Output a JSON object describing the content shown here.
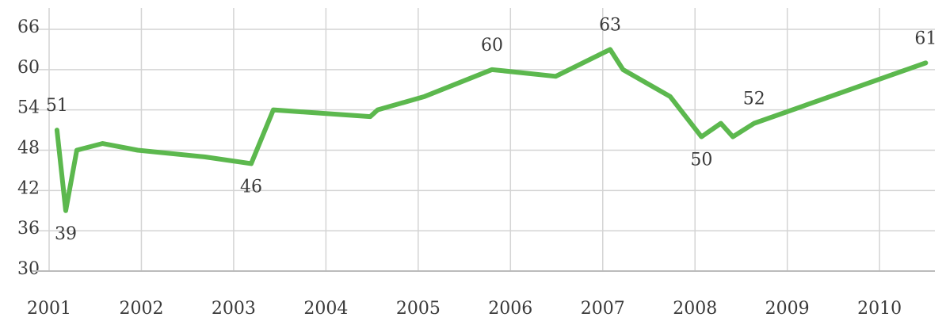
{
  "chart_data": {
    "type": "line",
    "x": [
      2001.085,
      2001.18,
      2001.3,
      2001.58,
      2001.96,
      2002.69,
      2003.19,
      2003.43,
      2004.48,
      2004.56,
      2005.07,
      2005.8,
      2006.49,
      2007.08,
      2007.22,
      2007.73,
      2008.07,
      2008.28,
      2008.41,
      2008.64,
      2010.5
    ],
    "series": [
      {
        "color": "#5cb84e",
        "values": [
          51,
          39,
          48,
          49,
          48,
          47,
          46,
          54,
          53,
          54,
          56,
          60,
          59,
          63,
          60,
          56,
          50,
          52,
          50,
          52,
          61
        ],
        "value_labels": [
          "51",
          "39",
          null,
          null,
          null,
          null,
          "46",
          null,
          null,
          null,
          null,
          "60",
          null,
          "63",
          null,
          null,
          "50",
          null,
          null,
          "52",
          "61"
        ]
      }
    ],
    "xlim": [
      2001,
      2010.6
    ],
    "xticks": [
      2001,
      2002,
      2003,
      2004,
      2005,
      2006,
      2007,
      2008,
      2009,
      2010
    ],
    "ylim": [
      30,
      66
    ],
    "yticks": [
      30,
      36,
      42,
      48,
      54,
      60,
      66
    ],
    "grid": true
  }
}
